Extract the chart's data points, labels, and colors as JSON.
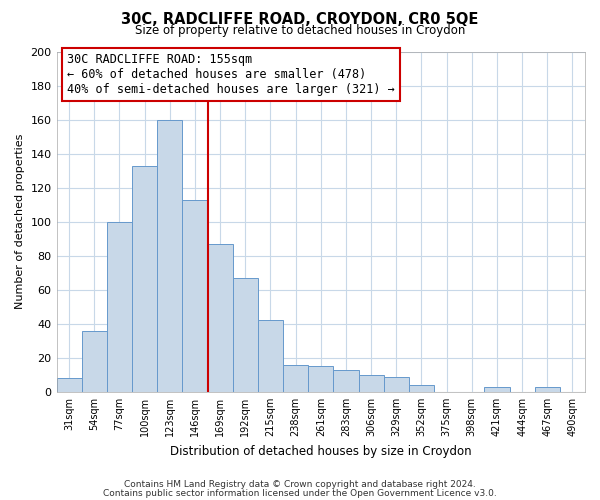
{
  "title": "30C, RADCLIFFE ROAD, CROYDON, CR0 5QE",
  "subtitle": "Size of property relative to detached houses in Croydon",
  "xlabel": "Distribution of detached houses by size in Croydon",
  "ylabel": "Number of detached properties",
  "bar_labels": [
    "31sqm",
    "54sqm",
    "77sqm",
    "100sqm",
    "123sqm",
    "146sqm",
    "169sqm",
    "192sqm",
    "215sqm",
    "238sqm",
    "261sqm",
    "283sqm",
    "306sqm",
    "329sqm",
    "352sqm",
    "375sqm",
    "398sqm",
    "421sqm",
    "444sqm",
    "467sqm",
    "490sqm"
  ],
  "bar_values": [
    8,
    36,
    100,
    133,
    160,
    113,
    87,
    67,
    42,
    16,
    15,
    13,
    10,
    9,
    4,
    0,
    0,
    3,
    0,
    3,
    0
  ],
  "bar_color": "#c8d8e8",
  "bar_edgecolor": "#6699cc",
  "vline_x": 5.5,
  "vline_color": "#cc0000",
  "ylim": [
    0,
    200
  ],
  "yticks": [
    0,
    20,
    40,
    60,
    80,
    100,
    120,
    140,
    160,
    180,
    200
  ],
  "annotation_title": "30C RADCLIFFE ROAD: 155sqm",
  "annotation_line1": "← 60% of detached houses are smaller (478)",
  "annotation_line2": "40% of semi-detached houses are larger (321) →",
  "annotation_box_color": "#ffffff",
  "annotation_box_edgecolor": "#cc0000",
  "footer_line1": "Contains HM Land Registry data © Crown copyright and database right 2024.",
  "footer_line2": "Contains public sector information licensed under the Open Government Licence v3.0.",
  "background_color": "#ffffff",
  "grid_color": "#c8d8e8"
}
